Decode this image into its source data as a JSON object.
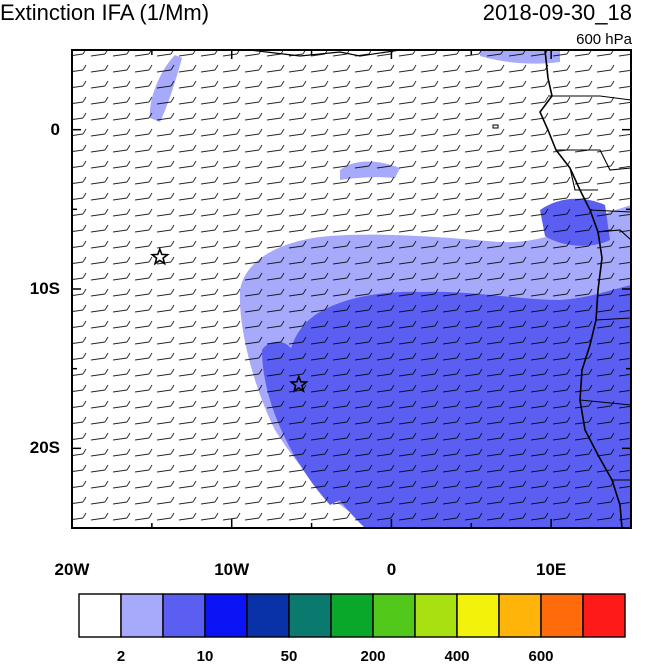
{
  "header": {
    "title": "Extinction IFA (1/Mm)",
    "datetime": "2018-09-30_18",
    "level": "600 hPa"
  },
  "map": {
    "lon_range": [
      -20,
      15
    ],
    "lat_range": [
      -25,
      5
    ],
    "lat_ticks": [
      {
        "value": 0,
        "label": "0"
      },
      {
        "value": -10,
        "label": "10S"
      },
      {
        "value": -20,
        "label": "20S"
      }
    ],
    "lon_ticks": [
      {
        "value": -20,
        "label": "20W"
      },
      {
        "value": -10,
        "label": "10W"
      },
      {
        "value": 0,
        "label": "0"
      },
      {
        "value": 10,
        "label": "10E"
      }
    ],
    "markers": [
      {
        "name": "star",
        "lon": -14.5,
        "lat": -8.0
      },
      {
        "name": "star",
        "lon": -5.8,
        "lat": -16.0
      }
    ],
    "shading_colors": {
      "light": "#a7a9fb",
      "medium": "#5a5ff2"
    },
    "overlay": "wind barbs"
  },
  "colorbar": {
    "colors": [
      "#ffffff",
      "#a7a9fb",
      "#5a5ff2",
      "#0a14f5",
      "#0a32a8",
      "#0a7a6e",
      "#0aa82a",
      "#52c81a",
      "#a8e012",
      "#f2f20a",
      "#ffb40a",
      "#ff6a0a",
      "#ff1a1a"
    ],
    "labels": [
      {
        "boundary": 1,
        "label": "2"
      },
      {
        "boundary": 3,
        "label": "10"
      },
      {
        "boundary": 5,
        "label": "50"
      },
      {
        "boundary": 7,
        "label": "200"
      },
      {
        "boundary": 9,
        "label": "400"
      },
      {
        "boundary": 11,
        "label": "600"
      }
    ]
  }
}
